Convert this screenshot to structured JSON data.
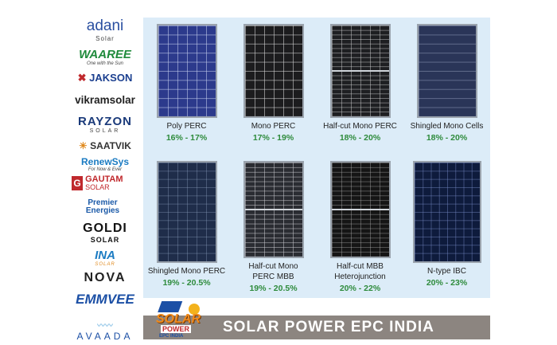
{
  "brands": [
    {
      "name": "adani",
      "sub": "Solar",
      "color": "#2a4fa0"
    },
    {
      "name": "WAAREE",
      "sub": "One with the Sun",
      "color": "#1f8a3b"
    },
    {
      "name": "JAKSON",
      "sub": "",
      "color": "#1b3f8f"
    },
    {
      "name": "vikramsolar",
      "sub": "",
      "color": "#222222"
    },
    {
      "name": "RAYZON",
      "sub": "SOLAR",
      "color": "#1a3a7a"
    },
    {
      "name": "SAATVIK",
      "sub": "",
      "color": "#333333"
    },
    {
      "name": "RenewSys",
      "sub": "For Now & Ever",
      "color": "#1b7bc2"
    },
    {
      "name": "GAUTAM",
      "sub": "SOLAR",
      "color": "#c0292d"
    },
    {
      "name": "Premier Energies",
      "sub": "",
      "color": "#1b5aa8"
    },
    {
      "name": "GOLDI",
      "sub": "SOLAR",
      "color": "#111111"
    },
    {
      "name": "INA",
      "sub": "SOLAR",
      "color": "#1b7bc2"
    },
    {
      "name": "NOVA",
      "sub": "",
      "color": "#222222"
    },
    {
      "name": "EMMVEE",
      "sub": "",
      "color": "#1b4fa5"
    },
    {
      "name": "AVAADA",
      "sub": "",
      "color": "#1b4fa5"
    }
  ],
  "panels": [
    {
      "label": "Poly PERC",
      "efficiency": "16% - 17%"
    },
    {
      "label": "Mono PERC",
      "efficiency": "17% - 19%"
    },
    {
      "label": "Half-cut Mono PERC",
      "efficiency": "18% - 20%"
    },
    {
      "label": "Shingled Mono Cells",
      "efficiency": "18% - 20%"
    },
    {
      "label": "Shingled Mono PERC",
      "efficiency": "19% - 20.5%"
    },
    {
      "label": "Half-cut Mono PERC MBB",
      "efficiency": "19% - 20.5%"
    },
    {
      "label": "Half-cut MBB Heterojunction",
      "efficiency": "20% - 22%"
    },
    {
      "label": "N-type IBC",
      "efficiency": "20% - 23%"
    }
  ],
  "banner": {
    "title": "SOLAR POWER EPC INDIA",
    "logo_top": "SOLAR",
    "logo_mid": "POWER",
    "logo_bottom": "EPC INDIA"
  },
  "colors": {
    "panel_bg": "#dcecf8",
    "efficiency": "#2e8b3c",
    "banner": "#8c8580"
  }
}
